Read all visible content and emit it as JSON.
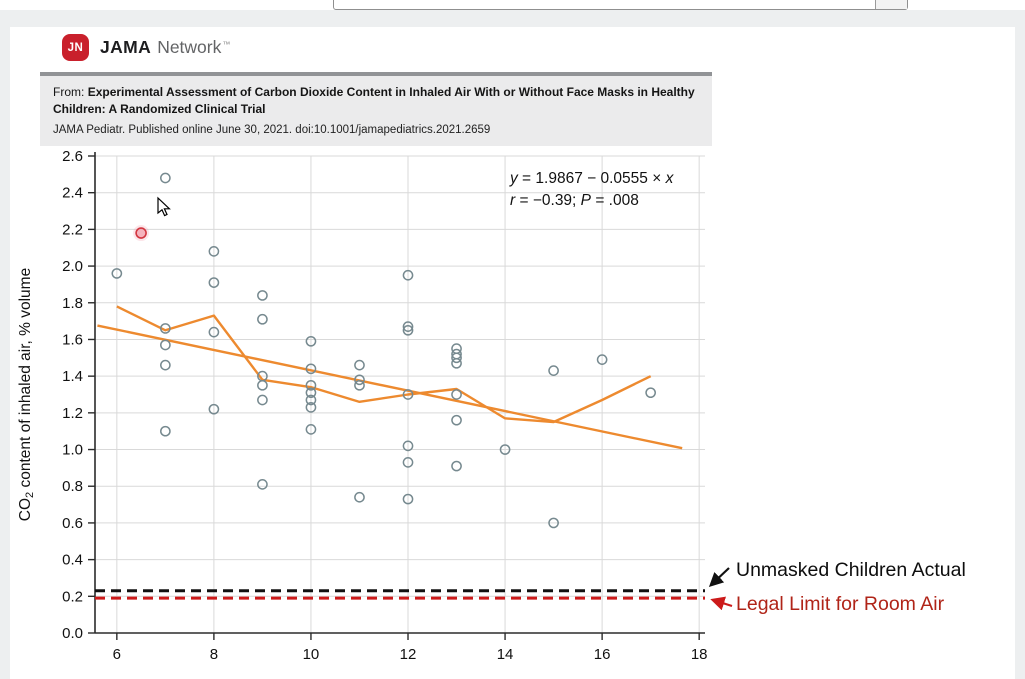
{
  "browser_bar": {
    "url_value": ""
  },
  "brand": {
    "logo": "JN",
    "name_bold": "JAMA",
    "name_light": "Network",
    "trademark": "™"
  },
  "source": {
    "from_label": "From:",
    "title": "Experimental Assessment of Carbon Dioxide Content in Inhaled Air With or Without Face Masks in Healthy Children: A Randomized Clinical Trial",
    "citation": "JAMA Pediatr. Published online  June 30, 2021. doi:10.1001/jamapediatrics.2021.2659"
  },
  "annotations": {
    "unmasked_label": "Unmasked Children Actual",
    "legal_label": "Legal Limit for Room Air"
  },
  "chart_data": {
    "type": "scatter",
    "title": "",
    "xlabel": "",
    "ylabel": "CO2 content of inhaled air, % volume",
    "ylabel_segments": [
      {
        "t": "CO"
      },
      {
        "t": "2",
        "sub": true
      },
      {
        "t": " content of inhaled air, % volume"
      }
    ],
    "equation": "y = 1.9867 − 0.0555 × x",
    "equation_segments": [
      {
        "t": "y",
        "i": true
      },
      {
        "t": " = 1.9867 − 0.0555 × "
      },
      {
        "t": "x",
        "i": true
      }
    ],
    "stats": "r = −0.39; P = .008",
    "stats_segments": [
      {
        "t": "r",
        "i": true
      },
      {
        "t": " = −0.39; "
      },
      {
        "t": "P",
        "i": true
      },
      {
        "t": " = .008"
      }
    ],
    "xlim": [
      5.55,
      18.12
    ],
    "ylim": [
      0,
      2.6
    ],
    "xticks": [
      6,
      8,
      10,
      12,
      14,
      16,
      18
    ],
    "yticks": [
      0,
      0.2,
      0.4,
      0.6,
      0.8,
      1.0,
      1.2,
      1.4,
      1.6,
      1.8,
      2.0,
      2.2,
      2.4,
      2.6
    ],
    "points": [
      [
        6,
        1.96
      ],
      [
        7,
        2.48
      ],
      [
        7,
        1.66
      ],
      [
        7,
        1.57
      ],
      [
        7,
        1.46
      ],
      [
        7,
        1.1
      ],
      [
        8,
        2.08
      ],
      [
        8,
        1.91
      ],
      [
        8,
        1.64
      ],
      [
        8,
        1.22
      ],
      [
        9,
        1.84
      ],
      [
        9,
        1.71
      ],
      [
        9,
        1.4
      ],
      [
        9,
        1.35
      ],
      [
        9,
        1.27
      ],
      [
        9,
        0.81
      ],
      [
        10,
        1.59
      ],
      [
        10,
        1.44
      ],
      [
        10,
        1.35
      ],
      [
        10,
        1.31
      ],
      [
        10,
        1.27
      ],
      [
        10,
        1.23
      ],
      [
        10,
        1.11
      ],
      [
        11,
        1.46
      ],
      [
        11,
        1.38
      ],
      [
        11,
        1.35
      ],
      [
        11,
        0.74
      ],
      [
        12,
        1.95
      ],
      [
        12,
        1.67
      ],
      [
        12,
        1.65
      ],
      [
        12,
        1.3
      ],
      [
        12,
        1.02
      ],
      [
        12,
        0.93
      ],
      [
        12,
        0.73
      ],
      [
        13,
        1.55
      ],
      [
        13,
        1.52
      ],
      [
        13,
        1.5
      ],
      [
        13,
        1.47
      ],
      [
        13,
        1.3
      ],
      [
        13,
        1.16
      ],
      [
        13,
        0.91
      ],
      [
        14,
        1.0
      ],
      [
        15,
        1.43
      ],
      [
        15,
        0.6
      ],
      [
        16,
        1.49
      ],
      [
        17,
        1.31
      ]
    ],
    "highlight_point": [
      6.5,
      2.18
    ],
    "regression_line": {
      "intercept": 1.9867,
      "slope": -0.0555,
      "x_start": 5.6,
      "x_end": 17.65
    },
    "mean_line": [
      [
        6,
        1.78
      ],
      [
        7,
        1.65
      ],
      [
        8,
        1.73
      ],
      [
        9,
        1.38
      ],
      [
        10,
        1.34
      ],
      [
        11,
        1.26
      ],
      [
        12,
        1.3
      ],
      [
        13,
        1.33
      ],
      [
        14,
        1.17
      ],
      [
        15,
        1.15
      ],
      [
        16,
        1.27
      ],
      [
        17,
        1.4
      ]
    ],
    "ref_lines": [
      {
        "value": 0.23,
        "color": "#111111",
        "dash": [
          10,
          6
        ],
        "label": "Unmasked Children Actual"
      },
      {
        "value": 0.19,
        "color": "#cc1a1a",
        "dash": [
          10,
          6
        ],
        "label": "Legal Limit for Room Air"
      }
    ],
    "legend_position": "none",
    "grid": true,
    "colors": {
      "trend": "#ed8a2f",
      "point_stroke": "#76898f",
      "grid": "#d9d9d9",
      "axis": "#2b2b2b",
      "highlight_fill": "#f29daa",
      "highlight_stroke": "#d23640",
      "ref_black": "#111111",
      "ref_red": "#cc1a1a",
      "brand_red": "#c9202c"
    }
  }
}
